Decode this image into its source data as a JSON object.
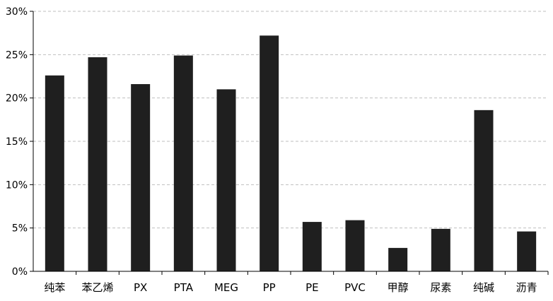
{
  "chart_data": {
    "type": "bar",
    "title": "",
    "xlabel": "",
    "ylabel": "",
    "categories": [
      "纯苯",
      "苯乙烯",
      "PX",
      "PTA",
      "MEG",
      "PP",
      "PE",
      "PVC",
      "甲醇",
      "尿素",
      "纯碱",
      "沥青"
    ],
    "values": [
      22.6,
      24.7,
      21.6,
      24.9,
      21.0,
      27.2,
      5.7,
      5.9,
      2.7,
      4.9,
      18.6,
      4.6
    ],
    "ylim": [
      0,
      30
    ],
    "y_ticks": [
      0,
      5,
      10,
      15,
      20,
      25,
      30
    ],
    "y_tick_labels": [
      "0%",
      "5%",
      "10%",
      "15%",
      "20%",
      "25%",
      "30%"
    ],
    "grid": "horizontal dashed",
    "legend": "none",
    "bar_color": "#1f1f1f",
    "grid_color": "#bfbfbf",
    "axis_color": "#000000"
  }
}
